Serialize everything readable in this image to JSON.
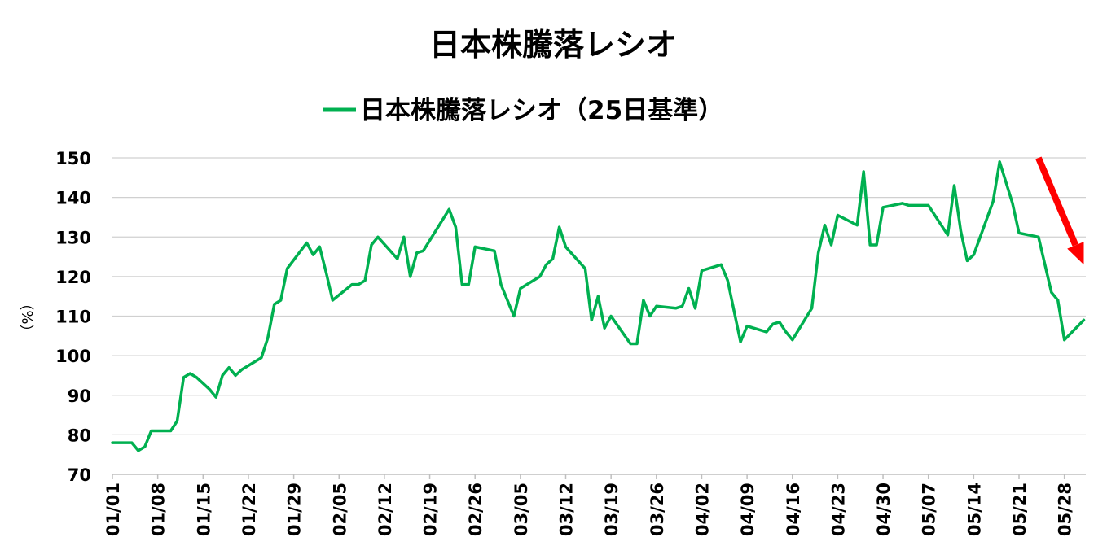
{
  "chart_data": {
    "type": "line",
    "title": "日本株騰落レシオ",
    "legend": [
      "日本株騰落レシオ（25日基準）"
    ],
    "legend_position": "top",
    "ylabel": "（%）",
    "xlabel": "",
    "ylim": [
      70,
      150
    ],
    "yticks": [
      70,
      80,
      90,
      100,
      110,
      120,
      130,
      140,
      150
    ],
    "xticks": [
      "01/01",
      "01/08",
      "01/15",
      "01/22",
      "01/29",
      "02/05",
      "02/12",
      "02/19",
      "02/26",
      "03/05",
      "03/12",
      "03/19",
      "03/26",
      "04/02",
      "04/09",
      "04/16",
      "04/23",
      "04/30",
      "05/07",
      "05/14",
      "05/21",
      "05/28"
    ],
    "grid": true,
    "colors": {
      "line": "#00b050",
      "arrow": "#ff0000"
    },
    "annotation": {
      "type": "arrow",
      "description": "downward trend",
      "from_day": 143,
      "from_value": 150,
      "to_day": 150,
      "to_value": 123
    },
    "series": [
      {
        "name": "日本株騰落レシオ（25日基準）",
        "points": [
          [
            0,
            78
          ],
          [
            3,
            78
          ],
          [
            4,
            76
          ],
          [
            5,
            77
          ],
          [
            6,
            81
          ],
          [
            9,
            81
          ],
          [
            10,
            83.5
          ],
          [
            11,
            94.5
          ],
          [
            12,
            95.5
          ],
          [
            13,
            94.5
          ],
          [
            15,
            91.5
          ],
          [
            16,
            89.5
          ],
          [
            17,
            95
          ],
          [
            18,
            97
          ],
          [
            19,
            95
          ],
          [
            20,
            96.5
          ],
          [
            23,
            99.5
          ],
          [
            24,
            104.5
          ],
          [
            25,
            113
          ],
          [
            26,
            114
          ],
          [
            27,
            122
          ],
          [
            30,
            128.5
          ],
          [
            31,
            125.5
          ],
          [
            32,
            127.5
          ],
          [
            33,
            121
          ],
          [
            34,
            114
          ],
          [
            37,
            118
          ],
          [
            38,
            118
          ],
          [
            39,
            119
          ],
          [
            40,
            128
          ],
          [
            41,
            130
          ],
          [
            44,
            124.5
          ],
          [
            45,
            130
          ],
          [
            46,
            120
          ],
          [
            47,
            126
          ],
          [
            48,
            126.5
          ],
          [
            52,
            137
          ],
          [
            53,
            132.5
          ],
          [
            54,
            118
          ],
          [
            55,
            118
          ],
          [
            56,
            127.5
          ],
          [
            59,
            126.5
          ],
          [
            60,
            118
          ],
          [
            62,
            110
          ],
          [
            63,
            117
          ],
          [
            66,
            120
          ],
          [
            67,
            123
          ],
          [
            68,
            124.5
          ],
          [
            69,
            132.5
          ],
          [
            70,
            127.5
          ],
          [
            73,
            122
          ],
          [
            74,
            109
          ],
          [
            75,
            115
          ],
          [
            76,
            107
          ],
          [
            77,
            110
          ],
          [
            80,
            103
          ],
          [
            81,
            103
          ],
          [
            82,
            114
          ],
          [
            83,
            110
          ],
          [
            84,
            112.5
          ],
          [
            87,
            112
          ],
          [
            88,
            112.5
          ],
          [
            89,
            117
          ],
          [
            90,
            112
          ],
          [
            91,
            121.5
          ],
          [
            94,
            123
          ],
          [
            95,
            119
          ],
          [
            97,
            103.5
          ],
          [
            98,
            107.5
          ],
          [
            101,
            106
          ],
          [
            102,
            108
          ],
          [
            103,
            108.5
          ],
          [
            104,
            106
          ],
          [
            105,
            104
          ],
          [
            108,
            112
          ],
          [
            109,
            126
          ],
          [
            110,
            133
          ],
          [
            111,
            128
          ],
          [
            112,
            135.5
          ],
          [
            115,
            133
          ],
          [
            116,
            146.5
          ],
          [
            117,
            128
          ],
          [
            118,
            128
          ],
          [
            119,
            137.5
          ],
          [
            122,
            138.5
          ],
          [
            123,
            138
          ],
          [
            126,
            138
          ],
          [
            129,
            130.5
          ],
          [
            130,
            143
          ],
          [
            131,
            131.5
          ],
          [
            132,
            124
          ],
          [
            133,
            125.5
          ],
          [
            136,
            139
          ],
          [
            137,
            149
          ],
          [
            139,
            138.5
          ],
          [
            140,
            131
          ],
          [
            143,
            130
          ],
          [
            145,
            116
          ],
          [
            146,
            114
          ],
          [
            147,
            104
          ],
          [
            150,
            109
          ]
        ]
      }
    ]
  }
}
